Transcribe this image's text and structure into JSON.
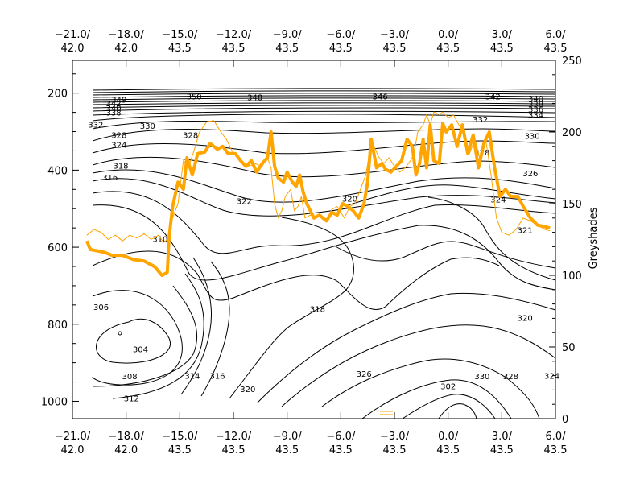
{
  "chart_data": {
    "type": "line",
    "title": "",
    "x_ticks": [
      {
        "lon": -21.0,
        "top": "−21.0/",
        "bottom": "42.0"
      },
      {
        "lon": -18.0,
        "top": "−18.0/",
        "bottom": "42.0"
      },
      {
        "lon": -15.0,
        "top": "−15.0/",
        "bottom": "43.5"
      },
      {
        "lon": -12.0,
        "top": "−12.0/",
        "bottom": "43.5"
      },
      {
        "lon": -9.0,
        "top": "−9.0/",
        "bottom": "43.5"
      },
      {
        "lon": -6.0,
        "top": "−6.0/",
        "bottom": "43.5"
      },
      {
        "lon": -3.0,
        "top": "−3.0/",
        "bottom": "43.5"
      },
      {
        "lon": 0.0,
        "top": "0.0/",
        "bottom": "43.5"
      },
      {
        "lon": 3.0,
        "top": "3.0/",
        "bottom": "43.5"
      },
      {
        "lon": 6.0,
        "top": "6.0/",
        "bottom": "43.5"
      }
    ],
    "x_range": [
      -21.0,
      6.0
    ],
    "left_axis": {
      "label": "",
      "range": [
        1045,
        115
      ],
      "ticks": [
        200,
        400,
        600,
        800,
        1000
      ]
    },
    "right_axis": {
      "label": "Greyshades",
      "range": [
        0,
        250
      ],
      "ticks": [
        0,
        50,
        100,
        150,
        200,
        250
      ]
    },
    "contour_labels": [
      {
        "text": "350",
        "x": -14.2,
        "p": 210
      },
      {
        "text": "348",
        "x": -10.8,
        "p": 212
      },
      {
        "text": "346",
        "x": -3.8,
        "p": 210
      },
      {
        "text": "342",
        "x": 2.5,
        "p": 210
      },
      {
        "text": "340",
        "x": 4.9,
        "p": 215
      },
      {
        "text": "338",
        "x": 4.9,
        "p": 230
      },
      {
        "text": "336",
        "x": 4.9,
        "p": 244
      },
      {
        "text": "334",
        "x": 4.9,
        "p": 258
      },
      {
        "text": "349",
        "x": -18.4,
        "p": 218
      },
      {
        "text": "342",
        "x": -18.7,
        "p": 228
      },
      {
        "text": "340",
        "x": -18.7,
        "p": 240
      },
      {
        "text": "338",
        "x": -18.7,
        "p": 252
      },
      {
        "text": "332",
        "x": -19.7,
        "p": 283
      },
      {
        "text": "330",
        "x": -16.8,
        "p": 286
      },
      {
        "text": "328",
        "x": -18.4,
        "p": 310
      },
      {
        "text": "324",
        "x": -18.4,
        "p": 335
      },
      {
        "text": "332",
        "x": 1.8,
        "p": 270
      },
      {
        "text": "330",
        "x": 4.7,
        "p": 313
      },
      {
        "text": "328",
        "x": -14.4,
        "p": 310
      },
      {
        "text": "328",
        "x": 1.9,
        "p": 355
      },
      {
        "text": "326",
        "x": 4.6,
        "p": 410
      },
      {
        "text": "318",
        "x": -18.3,
        "p": 390
      },
      {
        "text": "316",
        "x": -18.9,
        "p": 420
      },
      {
        "text": "322",
        "x": -11.4,
        "p": 482
      },
      {
        "text": "320",
        "x": -5.5,
        "p": 476
      },
      {
        "text": "324",
        "x": 2.8,
        "p": 478
      },
      {
        "text": "321",
        "x": 4.3,
        "p": 557
      },
      {
        "text": "310",
        "x": -16.1,
        "p": 580
      },
      {
        "text": "306",
        "x": -19.4,
        "p": 757
      },
      {
        "text": "318",
        "x": -7.3,
        "p": 762
      },
      {
        "text": "320",
        "x": 4.3,
        "p": 785
      },
      {
        "text": "304",
        "x": -17.2,
        "p": 866
      },
      {
        "text": "308",
        "x": -17.8,
        "p": 936
      },
      {
        "text": "312",
        "x": -17.7,
        "p": 994
      },
      {
        "text": "314",
        "x": -14.3,
        "p": 935
      },
      {
        "text": "316",
        "x": -12.9,
        "p": 935
      },
      {
        "text": "320",
        "x": -11.2,
        "p": 970
      },
      {
        "text": "326",
        "x": -4.7,
        "p": 930
      },
      {
        "text": "302",
        "x": 0.0,
        "p": 962
      },
      {
        "text": "330",
        "x": 1.9,
        "p": 936
      },
      {
        "text": "328",
        "x": 3.5,
        "p": 936
      },
      {
        "text": "324",
        "x": 5.8,
        "p": 935
      }
    ],
    "series": [
      {
        "style": "thick",
        "color": "#ffa500",
        "points": [
          [
            -20.2,
            124
          ],
          [
            -20.0,
            118
          ],
          [
            -19.6,
            117
          ],
          [
            -19.2,
            116
          ],
          [
            -18.8,
            114
          ],
          [
            -18.2,
            114
          ],
          [
            -17.6,
            111
          ],
          [
            -17.0,
            110
          ],
          [
            -16.4,
            106
          ],
          [
            -16.0,
            100
          ],
          [
            -15.7,
            102
          ],
          [
            -15.6,
            126
          ],
          [
            -15.4,
            148
          ],
          [
            -15.1,
            165
          ],
          [
            -14.8,
            160
          ],
          [
            -14.6,
            182
          ],
          [
            -14.3,
            170
          ],
          [
            -14.0,
            185
          ],
          [
            -13.6,
            186
          ],
          [
            -13.3,
            192
          ],
          [
            -12.9,
            188
          ],
          [
            -12.6,
            190
          ],
          [
            -12.3,
            185
          ],
          [
            -11.9,
            185
          ],
          [
            -11.6,
            180
          ],
          [
            -11.3,
            176
          ],
          [
            -11.0,
            180
          ],
          [
            -10.7,
            172
          ],
          [
            -10.4,
            178
          ],
          [
            -10.1,
            182
          ],
          [
            -9.9,
            200
          ],
          [
            -9.7,
            176
          ],
          [
            -9.5,
            168
          ],
          [
            -9.2,
            165
          ],
          [
            -9.0,
            172
          ],
          [
            -8.7,
            165
          ],
          [
            -8.5,
            162
          ],
          [
            -8.3,
            170
          ],
          [
            -8.1,
            158
          ],
          [
            -7.9,
            150
          ],
          [
            -7.5,
            140
          ],
          [
            -7.2,
            142
          ],
          [
            -6.8,
            138
          ],
          [
            -6.5,
            144
          ],
          [
            -6.2,
            142
          ],
          [
            -5.9,
            150
          ],
          [
            -5.6,
            148
          ],
          [
            -5.3,
            145
          ],
          [
            -5.0,
            140
          ],
          [
            -4.7,
            150
          ],
          [
            -4.5,
            165
          ],
          [
            -4.3,
            195
          ],
          [
            -4.0,
            175
          ],
          [
            -3.7,
            178
          ],
          [
            -3.5,
            174
          ],
          [
            -3.2,
            172
          ],
          [
            -2.9,
            176
          ],
          [
            -2.6,
            180
          ],
          [
            -2.3,
            195
          ],
          [
            -2.0,
            190
          ],
          [
            -1.8,
            170
          ],
          [
            -1.6,
            178
          ],
          [
            -1.4,
            195
          ],
          [
            -1.2,
            175
          ],
          [
            -1.0,
            205
          ],
          [
            -0.8,
            180
          ],
          [
            -0.5,
            178
          ],
          [
            -0.3,
            206
          ],
          [
            -0.1,
            200
          ],
          [
            0.2,
            205
          ],
          [
            0.5,
            190
          ],
          [
            0.8,
            205
          ],
          [
            1.1,
            185
          ],
          [
            1.4,
            198
          ],
          [
            1.7,
            175
          ],
          [
            2.0,
            192
          ],
          [
            2.3,
            200
          ],
          [
            2.6,
            175
          ],
          [
            2.9,
            155
          ],
          [
            3.2,
            160
          ],
          [
            3.5,
            155
          ],
          [
            3.9,
            155
          ],
          [
            4.2,
            148
          ],
          [
            4.6,
            140
          ],
          [
            5.0,
            135
          ],
          [
            5.4,
            134
          ],
          [
            5.7,
            133
          ]
        ]
      },
      {
        "style": "thin",
        "color": "#ffa500",
        "points": [
          [
            -20.2,
            128
          ],
          [
            -19.8,
            132
          ],
          [
            -19.4,
            130
          ],
          [
            -19.0,
            125
          ],
          [
            -18.6,
            128
          ],
          [
            -18.2,
            124
          ],
          [
            -17.8,
            128
          ],
          [
            -17.4,
            126
          ],
          [
            -17.0,
            129
          ],
          [
            -16.6,
            125
          ],
          [
            -16.2,
            128
          ],
          [
            -15.9,
            123
          ],
          [
            -15.7,
            125
          ],
          [
            -15.4,
            140
          ],
          [
            -15.1,
            150
          ],
          [
            -14.8,
            180
          ],
          [
            -14.5,
            176
          ],
          [
            -14.2,
            187
          ],
          [
            -13.9,
            200
          ],
          [
            -13.5,
            207
          ],
          [
            -13.1,
            208
          ],
          [
            -12.7,
            200
          ],
          [
            -12.4,
            195
          ],
          [
            -12.0,
            185
          ],
          [
            -11.6,
            180
          ],
          [
            -11.2,
            176
          ],
          [
            -10.8,
            178
          ],
          [
            -10.4,
            176
          ],
          [
            -10.1,
            182
          ],
          [
            -9.9,
            175
          ],
          [
            -9.7,
            150
          ],
          [
            -9.5,
            140
          ],
          [
            -9.3,
            145
          ],
          [
            -9.1,
            155
          ],
          [
            -8.8,
            160
          ],
          [
            -8.6,
            145
          ],
          [
            -8.4,
            148
          ],
          [
            -8.2,
            155
          ],
          [
            -8.0,
            140
          ],
          [
            -7.7,
            142
          ],
          [
            -7.4,
            140
          ],
          [
            -7.1,
            142
          ],
          [
            -6.8,
            138
          ],
          [
            -6.5,
            146
          ],
          [
            -6.2,
            148
          ],
          [
            -5.8,
            140
          ],
          [
            -5.5,
            148
          ],
          [
            -5.2,
            150
          ],
          [
            -4.9,
            160
          ],
          [
            -4.6,
            170
          ],
          [
            -4.4,
            185
          ],
          [
            -4.2,
            192
          ],
          [
            -3.9,
            183
          ],
          [
            -3.6,
            178
          ],
          [
            -3.3,
            182
          ],
          [
            -3.0,
            176
          ],
          [
            -2.7,
            172
          ],
          [
            -2.4,
            175
          ],
          [
            -2.1,
            180
          ],
          [
            -1.9,
            185
          ],
          [
            -1.7,
            200
          ],
          [
            -1.4,
            205
          ],
          [
            -1.2,
            212
          ],
          [
            -1.0,
            205
          ],
          [
            -0.8,
            214
          ],
          [
            -0.5,
            212
          ],
          [
            -0.3,
            214
          ],
          [
            0.0,
            210
          ],
          [
            0.3,
            212
          ],
          [
            0.6,
            205
          ],
          [
            0.9,
            200
          ],
          [
            1.2,
            185
          ],
          [
            1.5,
            195
          ],
          [
            1.8,
            180
          ],
          [
            2.1,
            195
          ],
          [
            2.4,
            170
          ],
          [
            2.7,
            140
          ],
          [
            3.0,
            130
          ],
          [
            3.4,
            128
          ],
          [
            3.8,
            132
          ],
          [
            4.2,
            140
          ],
          [
            4.6,
            138
          ],
          [
            5.0,
            135
          ],
          [
            5.4,
            132
          ],
          [
            5.7,
            131
          ]
        ]
      }
    ]
  }
}
